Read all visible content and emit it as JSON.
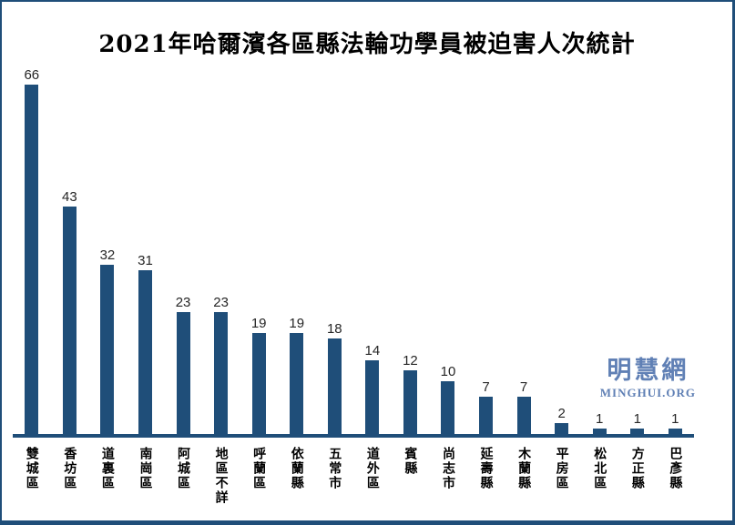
{
  "title": "2021年哈爾濱各區縣法輪功學員被迫害人次統計",
  "watermark": {
    "cn": "明慧網",
    "en": "MINGHUI.ORG"
  },
  "colors": {
    "bar": "#1F4E79",
    "frame_border": "#1F4E79",
    "axis_line": "#1F4E79",
    "value_label": "#262626",
    "category_label": "#000000",
    "watermark": "#6080B5",
    "background": "#FFFFFF"
  },
  "chart_data": {
    "type": "bar",
    "title": "2021年哈爾濱各區縣法輪功學員被迫害人次統計",
    "categories": [
      "雙城區",
      "香坊區",
      "道裏區",
      "南崗區",
      "阿城區",
      "地區不詳",
      "呼蘭區",
      "依蘭縣",
      "五常市",
      "道外區",
      "賓縣",
      "尚志市",
      "延壽縣",
      "木蘭縣",
      "平房區",
      "松北區",
      "方正縣",
      "巴彥縣"
    ],
    "values": [
      66,
      43,
      32,
      31,
      23,
      23,
      19,
      19,
      18,
      14,
      12,
      10,
      7,
      7,
      2,
      1,
      1,
      1
    ],
    "xlabel": "",
    "ylabel": "",
    "ylim": [
      0,
      70
    ],
    "grid": false,
    "legend": false,
    "value_labels_shown": true,
    "bar_color": "#1F4E79"
  }
}
